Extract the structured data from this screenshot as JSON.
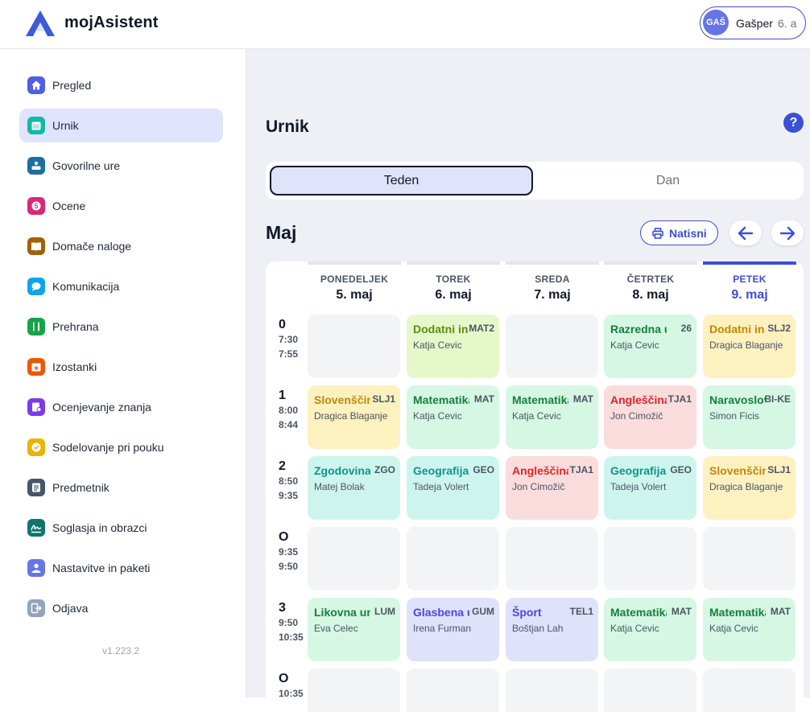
{
  "app": {
    "brand": "mojAsistent",
    "version": "v1.223.2"
  },
  "user": {
    "initials": "GAŠ",
    "name": "Gašper",
    "class": "6. a"
  },
  "sidebar": {
    "items": [
      {
        "label": "Pregled",
        "icon": "home-icon",
        "color": "#4f5fe0"
      },
      {
        "label": "Urnik",
        "icon": "calendar-icon",
        "color": "#14b8a6",
        "active": true
      },
      {
        "label": "Govorilne ure",
        "icon": "meeting-icon",
        "color": "#1e6f9f"
      },
      {
        "label": "Ocene",
        "icon": "grade-icon",
        "color": "#db2777"
      },
      {
        "label": "Domače naloge",
        "icon": "book-icon",
        "color": "#a16207"
      },
      {
        "label": "Komunikacija",
        "icon": "chat-icon",
        "color": "#0ea5e9"
      },
      {
        "label": "Prehrana",
        "icon": "cutlery-icon",
        "color": "#16a34a"
      },
      {
        "label": "Izostanki",
        "icon": "calendar-x-icon",
        "color": "#ea580c"
      },
      {
        "label": "Ocenjevanje znanja",
        "icon": "test-icon",
        "color": "#7c3aed"
      },
      {
        "label": "Sodelovanje pri pouku",
        "icon": "check-icon",
        "color": "#eab308"
      },
      {
        "label": "Predmetnik",
        "icon": "list-icon",
        "color": "#475569"
      },
      {
        "label": "Soglasja in obrazci",
        "icon": "signature-icon",
        "color": "#0f766e"
      },
      {
        "label": "Nastavitve in paketi",
        "icon": "user-icon",
        "color": "#6674e8"
      },
      {
        "label": "Odjava",
        "icon": "logout-icon",
        "color": "#94a3b8"
      }
    ]
  },
  "main": {
    "title": "Urnik",
    "help": "?",
    "tabs": [
      {
        "label": "Teden",
        "active": true
      },
      {
        "label": "Dan"
      }
    ],
    "month": "Maj",
    "print_label": "Natisni"
  },
  "calendar": {
    "days": [
      {
        "name": "PONEDELJEK",
        "date": "5. maj"
      },
      {
        "name": "TOREK",
        "date": "6. maj"
      },
      {
        "name": "SREDA",
        "date": "7. maj"
      },
      {
        "name": "ČETRTEK",
        "date": "8. maj"
      },
      {
        "name": "PETEK",
        "date": "9. maj",
        "current": true
      }
    ],
    "rows": [
      {
        "num": "0",
        "start": "7:30",
        "end": "7:55",
        "cells": [
          null,
          {
            "subject": "Dodatni in",
            "code": "MAT2",
            "teacher": "Katja Cevic",
            "theme": "lime"
          },
          null,
          {
            "subject": "Razredna ura",
            "code": "26",
            "teacher": "Katja Cevic",
            "theme": "green"
          },
          {
            "subject": "Dodatni in",
            "code": "SLJ2",
            "teacher": "Dragica Blaganje",
            "theme": "yellow"
          }
        ]
      },
      {
        "num": "1",
        "start": "8:00",
        "end": "8:44",
        "cells": [
          {
            "subject": "Slovenščina",
            "code": "SLJ1",
            "teacher": "Dragica Blaganje",
            "theme": "yellow"
          },
          {
            "subject": "Matematika",
            "code": "MAT",
            "teacher": "Katja Cevic",
            "theme": "green"
          },
          {
            "subject": "Matematika",
            "code": "MAT",
            "teacher": "Katja Cevic",
            "theme": "green"
          },
          {
            "subject": "Angleščina",
            "code": "TJA1",
            "teacher": "Jon Cimožič",
            "theme": "red"
          },
          {
            "subject": "Naravoslovje",
            "code": "BI-KE",
            "teacher": "Simon Ficis",
            "theme": "green"
          }
        ]
      },
      {
        "num": "2",
        "start": "8:50",
        "end": "9:35",
        "cells": [
          {
            "subject": "Zgodovina",
            "code": "ZGO",
            "teacher": "Matej Bolak",
            "theme": "teal"
          },
          {
            "subject": "Geografija",
            "code": "GEO",
            "teacher": "Tadeja Volert",
            "theme": "teal"
          },
          {
            "subject": "Angleščina",
            "code": "TJA1",
            "teacher": "Jon Cimožič",
            "theme": "red"
          },
          {
            "subject": "Geografija",
            "code": "GEO",
            "teacher": "Tadeja Volert",
            "theme": "teal"
          },
          {
            "subject": "Slovenščina",
            "code": "SLJ1",
            "teacher": "Dragica Blaganje",
            "theme": "yellow"
          }
        ]
      },
      {
        "num": "O",
        "start": "9:35",
        "end": "9:50",
        "cells": [
          null,
          null,
          null,
          null,
          null
        ]
      },
      {
        "num": "3",
        "start": "9:50",
        "end": "10:35",
        "cells": [
          {
            "subject": "Likovna umetnost",
            "code": "LUM",
            "teacher": "Eva Celec",
            "theme": "green"
          },
          {
            "subject": "Glasbena umetnost",
            "code": "GUM",
            "teacher": "Irena Furman",
            "theme": "indigo"
          },
          {
            "subject": "Šport",
            "code": "TEL1",
            "teacher": "Boštjan Lah",
            "theme": "indigo"
          },
          {
            "subject": "Matematika",
            "code": "MAT",
            "teacher": "Katja Cevic",
            "theme": "green"
          },
          {
            "subject": "Matematika",
            "code": "MAT",
            "teacher": "Katja Cevic",
            "theme": "green"
          }
        ]
      },
      {
        "num": "O",
        "start": "10:35",
        "end": "",
        "cells": [
          null,
          null,
          null,
          null,
          null
        ]
      }
    ]
  },
  "themes": {
    "lime": {
      "bg": "#e6f7c9",
      "fg": "#5a8f12"
    },
    "green": {
      "bg": "#d5f7e3",
      "fg": "#15803d"
    },
    "yellow": {
      "bg": "#fdf1c0",
      "fg": "#c2870a"
    },
    "red": {
      "bg": "#fbdcdc",
      "fg": "#dc2626"
    },
    "teal": {
      "bg": "#cdf5ee",
      "fg": "#0f9488"
    },
    "indigo": {
      "bg": "#dfe2fb",
      "fg": "#4f46e5"
    }
  }
}
